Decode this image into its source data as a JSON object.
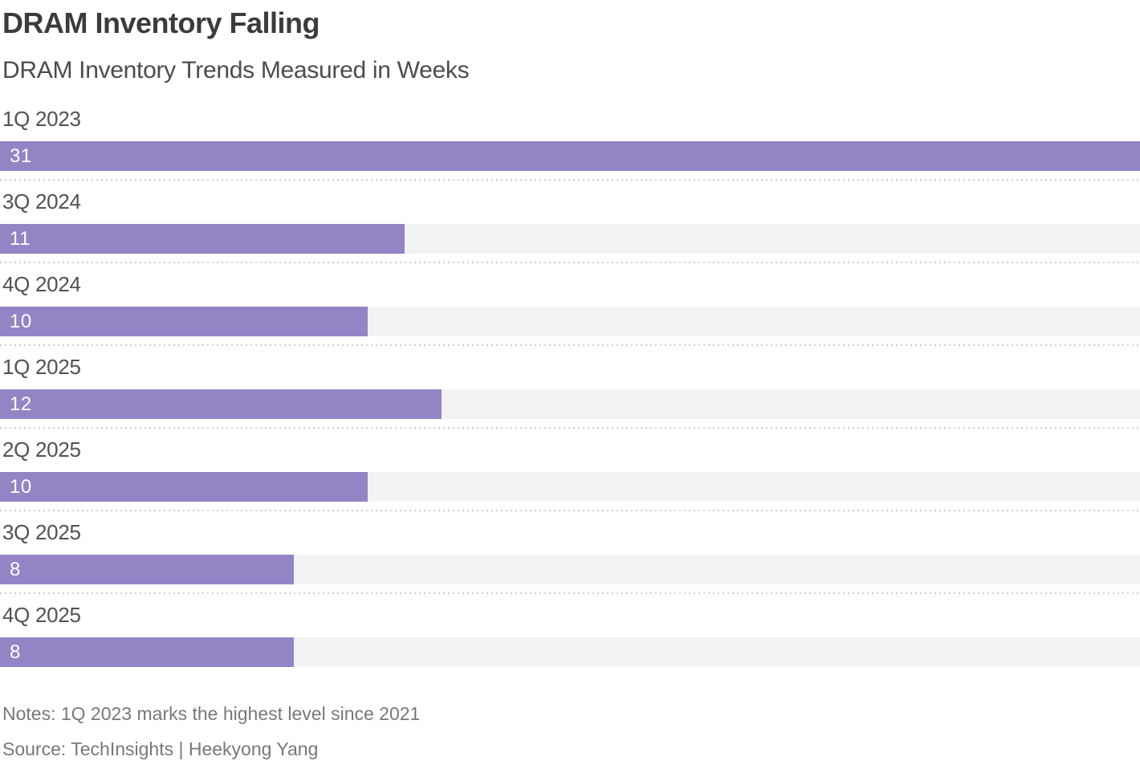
{
  "chart_data": {
    "type": "bar",
    "orientation": "horizontal",
    "title": "DRAM Inventory Falling",
    "subtitle": "DRAM Inventory Trends Measured in Weeks",
    "categories": [
      "1Q 2023",
      "3Q 2024",
      "4Q 2024",
      "1Q 2025",
      "2Q 2025",
      "3Q 2025",
      "4Q 2025"
    ],
    "values": [
      31,
      11,
      10,
      12,
      10,
      8,
      8
    ],
    "xlim": [
      0,
      31
    ],
    "grid": "off",
    "legend": "none",
    "notes": "Notes: 1Q 2023 marks the highest level since 2021",
    "source": "Source: TechInsights | Heekyong Yang",
    "colors": {
      "bar": "#9484c6",
      "track": "#f3f3f3",
      "title": "#3b3b3d",
      "subtitle": "#4b4c50",
      "category_label": "#515156",
      "value_label": "#ffffff",
      "separator_dots": "#cfcfcf",
      "footnotes": "#77787a"
    }
  }
}
